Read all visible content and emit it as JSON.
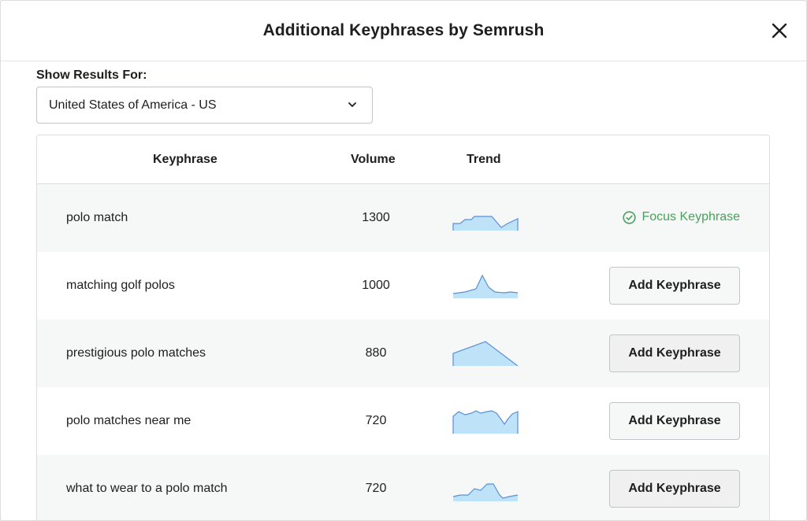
{
  "modal": {
    "title": "Additional Keyphrases by Semrush",
    "close_icon": "close-icon"
  },
  "filter": {
    "label": "Show Results For:",
    "selected_country": "United States of America - US"
  },
  "table": {
    "columns": [
      "Keyphrase",
      "Volume",
      "Trend"
    ],
    "rows": [
      {
        "keyphrase": "polo match",
        "volume": "1300",
        "status": "focus",
        "action_label": "Focus Keyphrase"
      },
      {
        "keyphrase": "matching golf polos",
        "volume": "1000",
        "status": "add",
        "action_label": "Add Keyphrase"
      },
      {
        "keyphrase": "prestigious polo matches",
        "volume": "880",
        "status": "add",
        "action_label": "Add Keyphrase"
      },
      {
        "keyphrase": "polo matches near me",
        "volume": "720",
        "status": "add",
        "action_label": "Add Keyphrase"
      },
      {
        "keyphrase": "what to wear to a polo match",
        "volume": "720",
        "status": "add",
        "action_label": "Add Keyphrase"
      }
    ]
  },
  "colors": {
    "trend_fill": "#bee3f8",
    "trend_stroke": "#5a8fd6",
    "focus_green": "#46a35a"
  }
}
